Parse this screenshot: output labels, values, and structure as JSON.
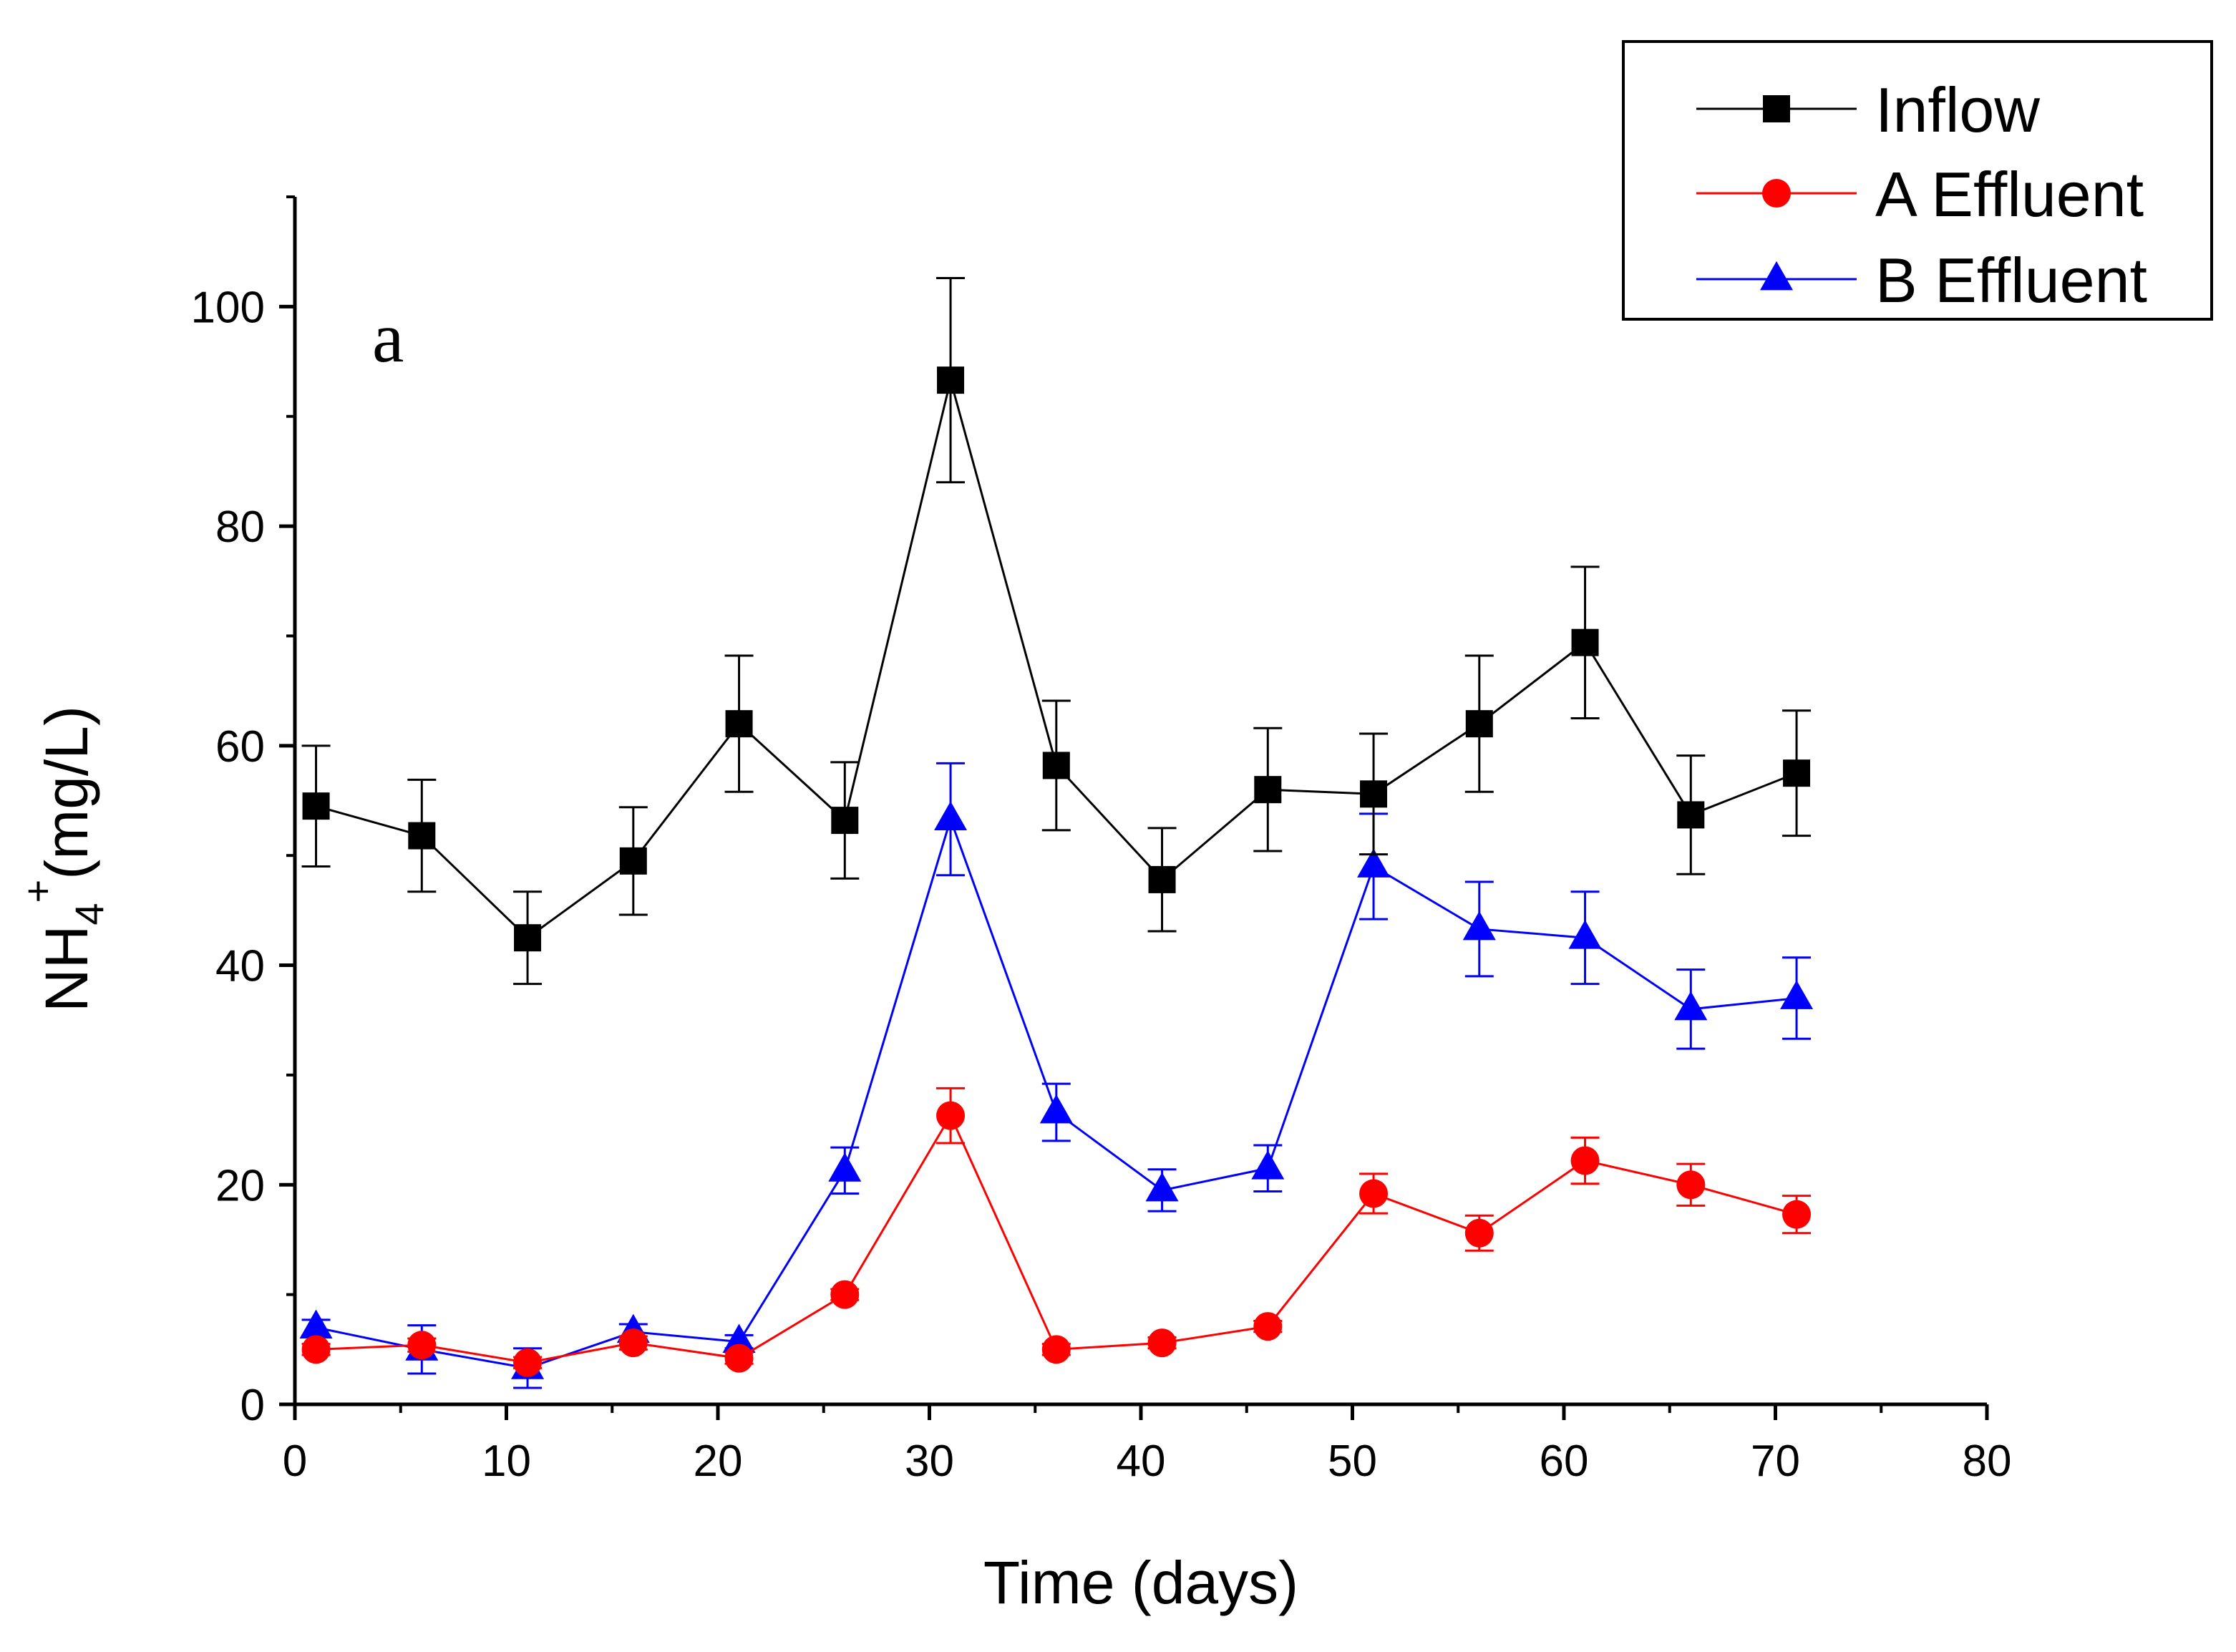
{
  "chart_data": {
    "type": "line",
    "panel_label": "a",
    "title": "",
    "xlabel": "Time (days)",
    "ylabel": {
      "base": "NH",
      "subscript": "4",
      "superscript": "+",
      "unit": "(mg/L)"
    },
    "xlim": [
      0,
      80
    ],
    "ylim": [
      0,
      110
    ],
    "x_ticks": [
      0,
      10,
      20,
      30,
      40,
      50,
      60,
      70,
      80
    ],
    "y_ticks": [
      0,
      20,
      40,
      60,
      80,
      100
    ],
    "legend_position": "top-right",
    "x": [
      1,
      6,
      11,
      16,
      21,
      26,
      31,
      36,
      41,
      46,
      51,
      56,
      61,
      66,
      71
    ],
    "series": [
      {
        "name": "Inflow",
        "color": "#000000",
        "marker": "square",
        "values": [
          54.5,
          51.8,
          42.5,
          49.5,
          62,
          53.2,
          93.3,
          58.2,
          47.8,
          56,
          55.6,
          62,
          69.4,
          53.7,
          57.5
        ],
        "errors": [
          5.5,
          5.1,
          4.2,
          4.9,
          6.2,
          5.3,
          9.3,
          5.9,
          4.7,
          5.6,
          5.5,
          6.2,
          6.9,
          5.4,
          5.7
        ]
      },
      {
        "name": "A Effluent",
        "color": "#ff0000",
        "marker": "circle",
        "values": [
          5,
          5.4,
          3.8,
          5.6,
          4.2,
          10,
          26.3,
          5,
          5.6,
          7.1,
          19.2,
          15.6,
          22.2,
          20,
          17.3
        ],
        "errors": [
          0.5,
          0.6,
          0.5,
          0.6,
          0.5,
          0.5,
          2.5,
          0.5,
          0.5,
          0.5,
          1.8,
          1.6,
          2.1,
          1.9,
          1.7
        ]
      },
      {
        "name": "B Effluent",
        "color": "#0000ff",
        "marker": "triangle",
        "values": [
          7,
          5,
          3.3,
          6.6,
          5.7,
          21.3,
          53.3,
          26.6,
          19.5,
          21.5,
          49,
          43.3,
          42.5,
          36,
          37
        ],
        "errors": [
          0.7,
          2.2,
          1.8,
          0.7,
          0.6,
          2.1,
          5.1,
          2.6,
          1.9,
          2.1,
          4.8,
          4.3,
          4.2,
          3.6,
          3.7
        ]
      }
    ]
  }
}
